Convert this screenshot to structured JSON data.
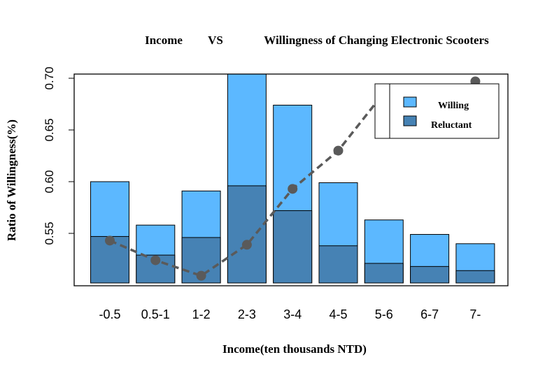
{
  "chart_data": {
    "type": "bar",
    "title_parts": [
      "Income",
      "VS",
      "Willingness of Changing Electronic Scooters"
    ],
    "xlabel": "Income(ten thousands NTD)",
    "ylabel": "Ratio of Willingness(%)",
    "categories": [
      "-0.5",
      "0.5-1",
      "1-2",
      "2-3",
      "3-4",
      "4-5",
      "5-6",
      "6-7",
      "7-"
    ],
    "ylim": [
      0.5,
      0.7
    ],
    "yticks": [
      "0.55",
      "0.60",
      "0.65",
      "0.70"
    ],
    "ytick_values": [
      0.55,
      0.6,
      0.65,
      0.7
    ],
    "series": [
      {
        "name": "Willing",
        "color": "#5cb8ff",
        "values": [
          0.6,
          0.558,
          0.591,
          0.705,
          0.674,
          0.599,
          0.563,
          0.549,
          0.54
        ]
      },
      {
        "name": "Reluctant",
        "color": "#4682b4",
        "values": [
          0.547,
          0.529,
          0.546,
          0.596,
          0.572,
          0.538,
          0.521,
          0.518,
          0.514
        ]
      }
    ],
    "line": {
      "color": "#5a5a5a",
      "style": "dashed",
      "values": [
        0.543,
        0.524,
        0.509,
        0.539,
        0.593,
        0.63,
        0.686,
        0.669,
        0.697
      ]
    },
    "legend_position": "top-right"
  }
}
